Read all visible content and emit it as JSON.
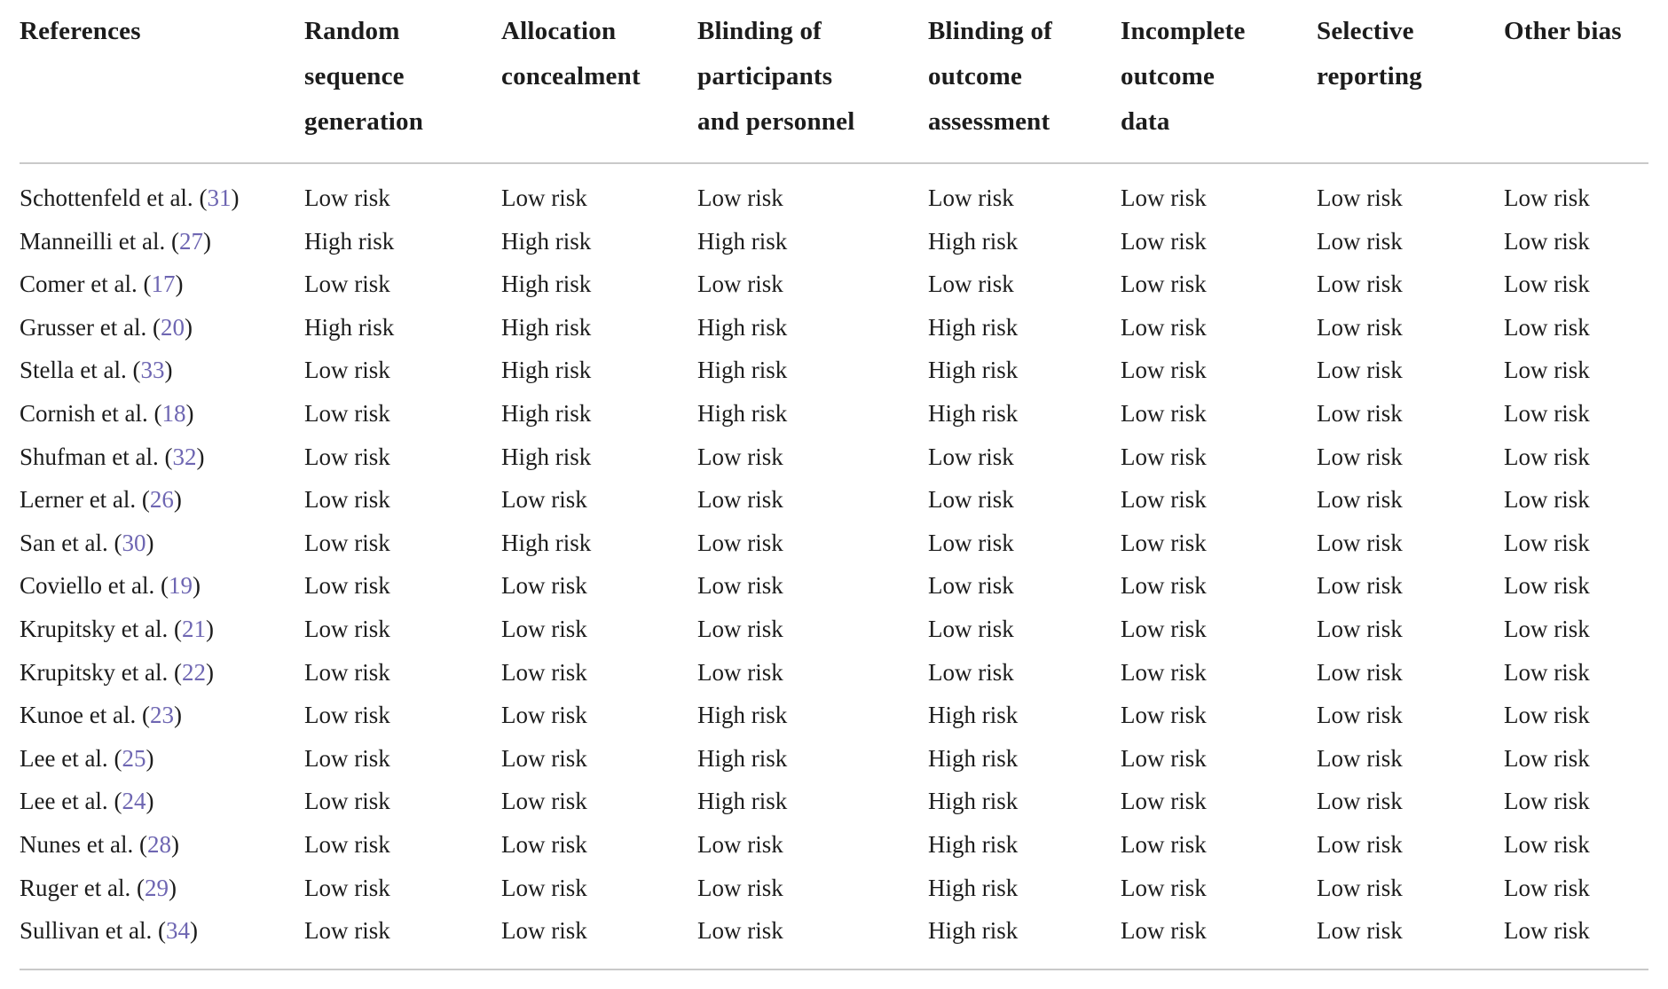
{
  "table": {
    "columns": [
      "References",
      "Random sequence generation",
      "Allocation concealment",
      "Blinding of participants and personnel",
      "Blinding of outcome assessment",
      "Incomplete outcome data",
      "Selective reporting",
      "Other bias"
    ],
    "risk_levels": [
      "Low risk",
      "High risk"
    ],
    "rows": [
      {
        "ref_name": "Schottenfeld et al.",
        "ref_num": "31",
        "values": [
          "Low risk",
          "Low risk",
          "Low risk",
          "Low risk",
          "Low risk",
          "Low risk",
          "Low risk"
        ]
      },
      {
        "ref_name": "Manneilli et al.",
        "ref_num": "27",
        "values": [
          "High risk",
          "High risk",
          "High risk",
          "High risk",
          "Low risk",
          "Low risk",
          "Low risk"
        ]
      },
      {
        "ref_name": "Comer et al.",
        "ref_num": "17",
        "values": [
          "Low risk",
          "High risk",
          "Low risk",
          "Low risk",
          "Low risk",
          "Low risk",
          "Low risk"
        ]
      },
      {
        "ref_name": "Grusser et al.",
        "ref_num": "20",
        "values": [
          "High risk",
          "High risk",
          "High risk",
          "High risk",
          "Low risk",
          "Low risk",
          "Low risk"
        ]
      },
      {
        "ref_name": "Stella et al.",
        "ref_num": "33",
        "values": [
          "Low risk",
          "High risk",
          "High risk",
          "High risk",
          "Low risk",
          "Low risk",
          "Low risk"
        ]
      },
      {
        "ref_name": "Cornish et al.",
        "ref_num": "18",
        "values": [
          "Low risk",
          "High risk",
          "High risk",
          "High risk",
          "Low risk",
          "Low risk",
          "Low risk"
        ]
      },
      {
        "ref_name": "Shufman et al.",
        "ref_num": "32",
        "values": [
          "Low risk",
          "High risk",
          "Low risk",
          "Low risk",
          "Low risk",
          "Low risk",
          "Low risk"
        ]
      },
      {
        "ref_name": "Lerner et al.",
        "ref_num": "26",
        "values": [
          "Low risk",
          "Low risk",
          "Low risk",
          "Low risk",
          "Low risk",
          "Low risk",
          "Low risk"
        ]
      },
      {
        "ref_name": "San et al.",
        "ref_num": "30",
        "values": [
          "Low risk",
          "High risk",
          "Low risk",
          "Low risk",
          "Low risk",
          "Low risk",
          "Low risk"
        ]
      },
      {
        "ref_name": "Coviello et al.",
        "ref_num": "19",
        "values": [
          "Low risk",
          "Low risk",
          "Low risk",
          "Low risk",
          "Low risk",
          "Low risk",
          "Low risk"
        ]
      },
      {
        "ref_name": "Krupitsky et al.",
        "ref_num": "21",
        "values": [
          "Low risk",
          "Low risk",
          "Low risk",
          "Low risk",
          "Low risk",
          "Low risk",
          "Low risk"
        ]
      },
      {
        "ref_name": "Krupitsky et al.",
        "ref_num": "22",
        "values": [
          "Low risk",
          "Low risk",
          "Low risk",
          "Low risk",
          "Low risk",
          "Low risk",
          "Low risk"
        ]
      },
      {
        "ref_name": "Kunoe et al.",
        "ref_num": "23",
        "values": [
          "Low risk",
          "Low risk",
          "High risk",
          "High risk",
          "Low risk",
          "Low risk",
          "Low risk"
        ]
      },
      {
        "ref_name": "Lee et al.",
        "ref_num": "25",
        "values": [
          "Low risk",
          "Low risk",
          "High risk",
          "High risk",
          "Low risk",
          "Low risk",
          "Low risk"
        ]
      },
      {
        "ref_name": "Lee et al.",
        "ref_num": "24",
        "values": [
          "Low risk",
          "Low risk",
          "High risk",
          "High risk",
          "Low risk",
          "Low risk",
          "Low risk"
        ]
      },
      {
        "ref_name": "Nunes et al.",
        "ref_num": "28",
        "values": [
          "Low risk",
          "Low risk",
          "Low risk",
          "High risk",
          "Low risk",
          "Low risk",
          "Low risk"
        ]
      },
      {
        "ref_name": "Ruger et al.",
        "ref_num": "29",
        "values": [
          "Low risk",
          "Low risk",
          "Low risk",
          "High risk",
          "Low risk",
          "Low risk",
          "Low risk"
        ]
      },
      {
        "ref_name": "Sullivan et al.",
        "ref_num": "34",
        "values": [
          "Low risk",
          "Low risk",
          "Low risk",
          "High risk",
          "Low risk",
          "Low risk",
          "Low risk"
        ]
      }
    ]
  },
  "colors": {
    "background": "#ffffff",
    "text": "#1c1c1c",
    "citation": "#6e66b2",
    "rule": "#c9c9c9"
  }
}
